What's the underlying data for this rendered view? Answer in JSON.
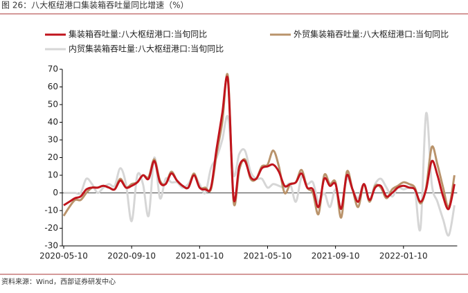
{
  "header": {
    "title": "图 26：八大枢纽港口集装箱吞吐量同比增速（%）"
  },
  "chart_data": {
    "type": "line",
    "categories": [
      "2020-05-10",
      null,
      null,
      null,
      null,
      null,
      null,
      null,
      null,
      null,
      null,
      null,
      "2020-09-10",
      null,
      null,
      null,
      null,
      null,
      null,
      null,
      null,
      null,
      null,
      null,
      "2021-01-10",
      null,
      null,
      null,
      null,
      null,
      null,
      null,
      null,
      null,
      null,
      null,
      "2021-05-10",
      null,
      null,
      null,
      null,
      null,
      null,
      null,
      null,
      null,
      null,
      null,
      "2021-09-10",
      null,
      null,
      null,
      null,
      null,
      null,
      null,
      null,
      null,
      null,
      null,
      "2022-01-10",
      null,
      null,
      null,
      null,
      null,
      null,
      null,
      null,
      null
    ],
    "series": [
      {
        "name": "集装箱吞吐量:八大枢纽港口:当旬同比",
        "color": "#c0141c",
        "values": [
          -7,
          -5,
          -3,
          -2,
          2,
          3,
          3,
          4,
          3,
          2,
          7,
          3,
          4,
          6,
          10,
          8,
          18,
          6,
          5,
          11,
          7,
          4,
          3,
          10,
          3,
          2,
          3,
          25,
          45,
          64,
          -3,
          15,
          18,
          9,
          8,
          14,
          15,
          16,
          12,
          4,
          5,
          6,
          11,
          3,
          2,
          -8,
          8,
          4,
          5,
          -9,
          10,
          2,
          -5,
          5,
          -4,
          3,
          4,
          -2,
          0,
          3,
          4,
          3,
          2,
          -5,
          2,
          18,
          10,
          -2,
          -9,
          5
        ]
      },
      {
        "name": "外贸集装箱吞吐量:八大枢纽港口:当旬同比",
        "color": "#b9936b",
        "values": [
          -13,
          -8,
          -4,
          -4,
          0,
          3,
          3,
          4,
          3,
          2,
          8,
          3,
          5,
          6,
          10,
          9,
          19,
          7,
          5,
          12,
          7,
          4,
          3,
          11,
          3,
          3,
          2,
          22,
          40,
          66,
          -5,
          13,
          19,
          8,
          8,
          15,
          16,
          24,
          15,
          0,
          5,
          6,
          13,
          3,
          0,
          -12,
          10,
          5,
          6,
          -14,
          12,
          2,
          -8,
          5,
          -5,
          4,
          3,
          -3,
          2,
          4,
          6,
          5,
          3,
          -6,
          3,
          26,
          16,
          3,
          -8,
          10
        ]
      },
      {
        "name": "内贸集装箱吞吐量:八大枢纽港口:当旬同比",
        "color": "#d6d6d6",
        "values": [
          0,
          0,
          0,
          0,
          8,
          5,
          0,
          3,
          5,
          4,
          14,
          5,
          -16,
          10,
          5,
          -13,
          20,
          -3,
          8,
          6,
          6,
          3,
          5,
          10,
          5,
          0,
          14,
          20,
          30,
          43,
          10,
          22,
          24,
          12,
          8,
          8,
          3,
          5,
          4,
          3,
          5,
          -5,
          9,
          5,
          6,
          -5,
          0,
          -8,
          2,
          -9,
          8,
          2,
          -3,
          5,
          -4,
          5,
          8,
          3,
          -2,
          3,
          2,
          3,
          2,
          -20,
          45,
          5,
          -5,
          -15,
          -24,
          -7
        ]
      }
    ],
    "ylim": [
      -30,
      70
    ],
    "yticks": [
      -30,
      -20,
      -10,
      0,
      10,
      20,
      30,
      40,
      50,
      60,
      70
    ],
    "source": "资料来源：Wind，西部证券研发中心"
  }
}
